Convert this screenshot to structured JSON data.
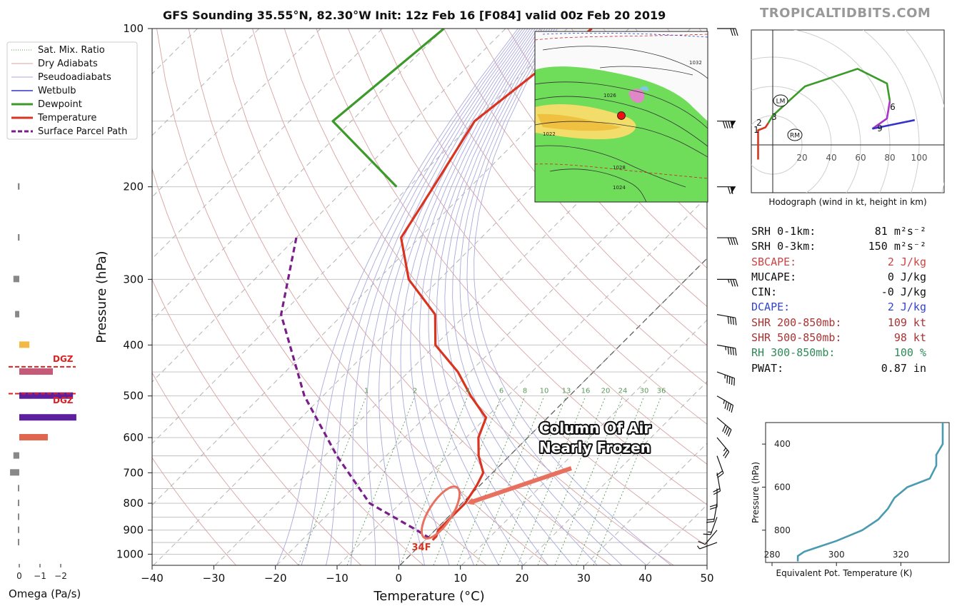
{
  "title": "GFS Sounding 35.55°N, 82.30°W Init: 12z Feb 16 [F084] valid 00z Feb 20 2019",
  "brand": "TROPICALTIDBITS.COM",
  "legend": [
    {
      "label": "Sat. Mix. Ratio",
      "style": "dotted",
      "color": "#5a9a5a"
    },
    {
      "label": "Dry Adiabats",
      "style": "thin",
      "color": "#d9a3a3"
    },
    {
      "label": "Pseudoadiabats",
      "style": "thin",
      "color": "#a9a9dd"
    },
    {
      "label": "Wetbulb",
      "style": "solid",
      "color": "#3333cc"
    },
    {
      "label": "Dewpoint",
      "style": "thick",
      "color": "#3c9a2a"
    },
    {
      "label": "Temperature",
      "style": "thick",
      "color": "#d9341f"
    },
    {
      "label": "Surface Parcel Path",
      "style": "dashed",
      "color": "#7a1f8a"
    }
  ],
  "annotation": {
    "line1": "Column Of Air",
    "line2": "Nearly Frozen",
    "color": "#e8705e"
  },
  "surface_temp_label": "34F",
  "dgz_label": "DGZ",
  "chart_data": [
    {
      "type": "line",
      "name": "skew-t",
      "title": "GFS Sounding 35.55°N, 82.30°W Init: 12z Feb 16 [F084] valid 00z Feb 20 2019",
      "xlabel": "Temperature (°C)",
      "ylabel": "Pressure (hPa)",
      "xlim": [
        -40,
        50
      ],
      "ylim": [
        1050,
        100
      ],
      "x_ticks": [
        "−40",
        "−30",
        "−20",
        "−10",
        "0",
        "10",
        "20",
        "30",
        "40",
        "50"
      ],
      "y_ticks": [
        "100",
        "200",
        "300",
        "400",
        "500",
        "600",
        "700",
        "800",
        "900",
        "1000"
      ],
      "mixing_ratio_labels": [
        "1",
        "2",
        "4",
        "6",
        "8",
        "10",
        "13",
        "16",
        "20",
        "24",
        "30",
        "36"
      ],
      "series": [
        {
          "name": "Temperature",
          "color": "#d9341f",
          "points": [
            [
              -56,
              100
            ],
            [
              -60,
              150
            ],
            [
              -56,
              200
            ],
            [
              -53,
              250
            ],
            [
              -45,
              300
            ],
            [
              -35,
              350
            ],
            [
              -30,
              400
            ],
            [
              -22,
              450
            ],
            [
              -16,
              500
            ],
            [
              -10,
              550
            ],
            [
              -8,
              600
            ],
            [
              -5,
              650
            ],
            [
              -1.5,
              700
            ],
            [
              -0.5,
              740
            ],
            [
              0.5,
              800
            ],
            [
              0.5,
              850
            ],
            [
              0.5,
              900
            ],
            [
              1.2,
              925
            ],
            [
              1.2,
              940
            ]
          ]
        },
        {
          "name": "Dewpoint",
          "color": "#3c9a2a",
          "points": [
            [
              -80,
              100
            ],
            [
              -83,
              150
            ],
            [
              -62,
              200
            ]
          ]
        },
        {
          "name": "Surface Parcel Path",
          "color": "#7a1f8a",
          "points": [
            [
              -70,
              250
            ],
            [
              -60,
              350
            ],
            [
              -43,
              500
            ],
            [
              -28,
              650
            ],
            [
              -15,
              800
            ],
            [
              -3,
              900
            ],
            [
              1.2,
              940
            ]
          ]
        }
      ]
    },
    {
      "type": "line",
      "name": "hodograph",
      "title": "Hodograph (wind in kt, height in km)",
      "x_ticks": [
        "20",
        "40",
        "60",
        "80",
        "100"
      ],
      "height_labels": [
        "1",
        "2",
        "3",
        "6",
        "9"
      ],
      "markers": [
        "LM",
        "RM"
      ],
      "series": [
        {
          "name": "0-1km",
          "color": "#d9341f",
          "points": [
            [
              -10,
              -10
            ],
            [
              -10,
              10
            ],
            [
              -5,
              12
            ],
            [
              -3,
              15
            ]
          ]
        },
        {
          "name": "1-3km",
          "color": "#3c9a2a",
          "points": [
            [
              -3,
              15
            ],
            [
              0,
              20
            ],
            [
              22,
              40
            ],
            [
              58,
              52
            ],
            [
              78,
              42
            ],
            [
              80,
              30
            ]
          ]
        },
        {
          "name": "3-6km",
          "color": "#aa33cc",
          "points": [
            [
              80,
              30
            ],
            [
              78,
              18
            ],
            [
              68,
              11
            ]
          ]
        },
        {
          "name": "6-9km",
          "color": "#3333cc",
          "points": [
            [
              68,
              11
            ],
            [
              97,
              17
            ]
          ]
        }
      ]
    },
    {
      "type": "line",
      "name": "theta-e",
      "xlabel": "Equivalent Pot. Temperature (K)",
      "ylabel": "Pressure (hPa)",
      "xlim": [
        278,
        335
      ],
      "ylim": [
        950,
        300
      ],
      "x_ticks": [
        "280",
        "300",
        "320"
      ],
      "y_ticks": [
        "400",
        "600",
        "800"
      ],
      "series": [
        {
          "name": "Theta-E",
          "color": "#4a9ab0",
          "points": [
            [
              288,
              945
            ],
            [
              288,
              920
            ],
            [
              290,
              900
            ],
            [
              300,
              850
            ],
            [
              308,
              800
            ],
            [
              313,
              750
            ],
            [
              316,
              700
            ],
            [
              318,
              650
            ],
            [
              322,
              600
            ],
            [
              329,
              560
            ],
            [
              331,
              500
            ],
            [
              331,
              450
            ],
            [
              333,
              400
            ],
            [
              333,
              300
            ]
          ]
        }
      ]
    },
    {
      "type": "bar",
      "name": "omega",
      "xlabel": "Omega (Pa/s)",
      "x_ticks": [
        "0",
        "−1",
        "−2"
      ],
      "bars": [
        {
          "pressure": 200,
          "value": -0.1,
          "color": "#888888"
        },
        {
          "pressure": 250,
          "value": -0.1,
          "color": "#888888"
        },
        {
          "pressure": 300,
          "value": -0.35,
          "color": "#888888"
        },
        {
          "pressure": 350,
          "value": -0.25,
          "color": "#888888"
        },
        {
          "pressure": 400,
          "value": -0.6,
          "color": "#f4b942"
        },
        {
          "pressure": 450,
          "value": -2.0,
          "color": "#c45a78"
        },
        {
          "pressure": 500,
          "value": -3.2,
          "color": "#5b1fa0"
        },
        {
          "pressure": 550,
          "value": -3.4,
          "color": "#5b1fa0"
        },
        {
          "pressure": 600,
          "value": -1.7,
          "color": "#e06650"
        },
        {
          "pressure": 650,
          "value": -0.35,
          "color": "#888888"
        },
        {
          "pressure": 700,
          "value": -0.55,
          "color": "#888888"
        },
        {
          "pressure": 750,
          "value": -0.05,
          "color": "#888888"
        },
        {
          "pressure": 800,
          "value": -0.05,
          "color": "#888888"
        },
        {
          "pressure": 850,
          "value": -0.05,
          "color": "#888888"
        },
        {
          "pressure": 900,
          "value": -0.05,
          "color": "#888888"
        },
        {
          "pressure": 950,
          "value": -0.05,
          "color": "#888888"
        }
      ]
    },
    {
      "type": "scatter",
      "name": "wind-barbs",
      "levels": [
        {
          "pressure": 100,
          "speed": 30,
          "dir": 270
        },
        {
          "pressure": 150,
          "speed": 90,
          "dir": 270
        },
        {
          "pressure": 200,
          "speed": 70,
          "dir": 270
        },
        {
          "pressure": 250,
          "speed": 40,
          "dir": 270
        },
        {
          "pressure": 300,
          "speed": 35,
          "dir": 270
        },
        {
          "pressure": 350,
          "speed": 40,
          "dir": 260
        },
        {
          "pressure": 400,
          "speed": 45,
          "dir": 260
        },
        {
          "pressure": 450,
          "speed": 45,
          "dir": 250
        },
        {
          "pressure": 500,
          "speed": 45,
          "dir": 240
        },
        {
          "pressure": 550,
          "speed": 40,
          "dir": 230
        },
        {
          "pressure": 600,
          "speed": 25,
          "dir": 220
        },
        {
          "pressure": 650,
          "speed": 20,
          "dir": 200
        },
        {
          "pressure": 700,
          "speed": 20,
          "dir": 190
        },
        {
          "pressure": 750,
          "speed": 20,
          "dir": 180
        },
        {
          "pressure": 800,
          "speed": 20,
          "dir": 170
        },
        {
          "pressure": 850,
          "speed": 15,
          "dir": 160
        },
        {
          "pressure": 900,
          "speed": 10,
          "dir": 140
        },
        {
          "pressure": 950,
          "speed": 5,
          "dir": 110
        }
      ]
    }
  ],
  "indices": [
    {
      "label": "SRH 0-1km:",
      "value": "81 m²s⁻²",
      "color": "#111111"
    },
    {
      "label": "SRH 0-3km:",
      "value": "150 m²s⁻²",
      "color": "#111111"
    },
    {
      "label": "SBCAPE:",
      "value": "2 J/kg",
      "color": "#cc4444"
    },
    {
      "label": "MUCAPE:",
      "value": "0 J/kg",
      "color": "#111111"
    },
    {
      "label": "CIN:",
      "value": "-0 J/kg",
      "color": "#111111"
    },
    {
      "label": "DCAPE:",
      "value": "2 J/kg",
      "color": "#3344cc"
    },
    {
      "label": "SHR 200-850mb:",
      "value": "109 kt",
      "color": "#aa3333"
    },
    {
      "label": "SHR 500-850mb:",
      "value": "98 kt",
      "color": "#aa3333"
    },
    {
      "label": "RH 300-850mb:",
      "value": "100 %",
      "color": "#2e8b57"
    },
    {
      "label": "PWAT:",
      "value": "0.87 in",
      "color": "#111111"
    }
  ],
  "map_labels": [
    "1032",
    "1022",
    "1028",
    "1026",
    "1024"
  ]
}
